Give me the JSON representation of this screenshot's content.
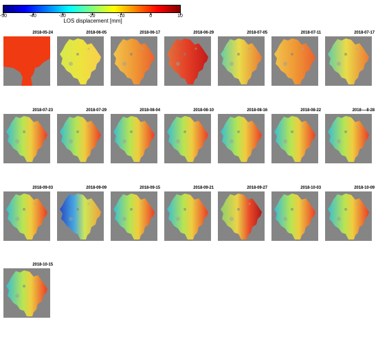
{
  "colorbar": {
    "label": "LOS displacement [mm]",
    "ticks": [
      "-50",
      "-40",
      "-30",
      "-20",
      "-10",
      "0",
      "10"
    ],
    "range": [
      -50,
      10
    ],
    "colormap": [
      "#00007f",
      "#0000ff",
      "#007fff",
      "#00ffff",
      "#7fff7f",
      "#ffff00",
      "#ff7f00",
      "#ff0000",
      "#7f0000"
    ]
  },
  "panels": [
    {
      "date": "2018-05-24",
      "variant": "reference"
    },
    {
      "date": "2018-06-05",
      "variant": "yellow"
    },
    {
      "date": "2018-06-17",
      "variant": "warm"
    },
    {
      "date": "2018-06-29",
      "variant": "hot"
    },
    {
      "date": "2018-07-05",
      "variant": "mixed"
    },
    {
      "date": "2018-07-11",
      "variant": "warm"
    },
    {
      "date": "2018-07-17",
      "variant": "mixed"
    },
    {
      "date": "2018-07-23",
      "variant": "gradient"
    },
    {
      "date": "2018-07-29",
      "variant": "gradient"
    },
    {
      "date": "2018-08-04",
      "variant": "gradient"
    },
    {
      "date": "2018-08-10",
      "variant": "gradient"
    },
    {
      "date": "2018-08-16",
      "variant": "gradient"
    },
    {
      "date": "2018-08-22",
      "variant": "gradient"
    },
    {
      "date": "2018-—8-28",
      "variant": "gradient"
    },
    {
      "date": "2018-09-03",
      "variant": "gradient"
    },
    {
      "date": "2018-09-09",
      "variant": "blue"
    },
    {
      "date": "2018-09-15",
      "variant": "gradient"
    },
    {
      "date": "2018-09-21",
      "variant": "gradient"
    },
    {
      "date": "2018-09-27",
      "variant": "hot2"
    },
    {
      "date": "2018-10-03",
      "variant": "gradient"
    },
    {
      "date": "2018-10-09",
      "variant": "gradient"
    },
    {
      "date": "2018-10-15",
      "variant": "gradient"
    }
  ]
}
